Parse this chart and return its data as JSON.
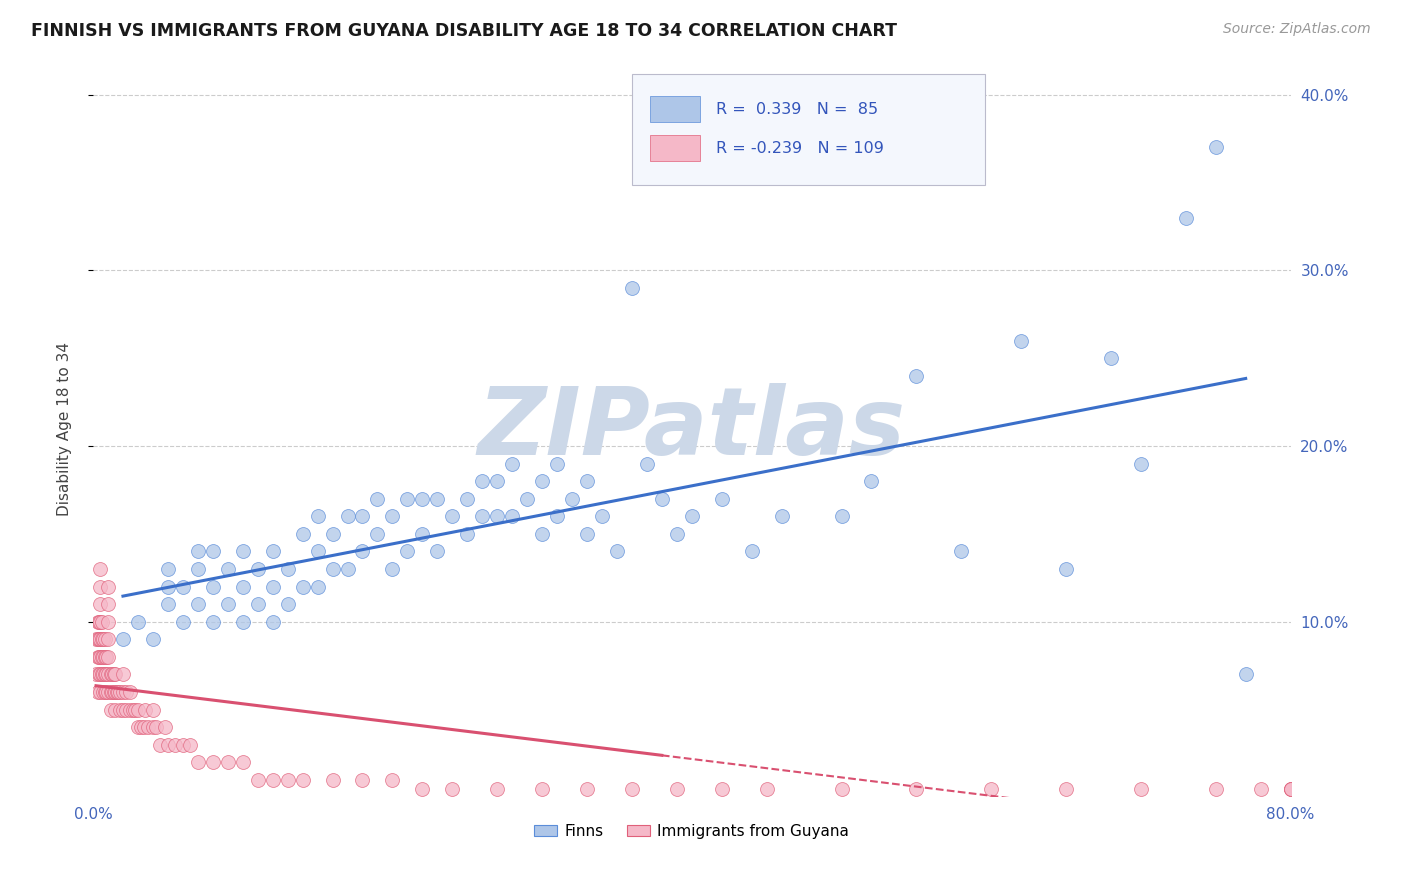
{
  "title": "FINNISH VS IMMIGRANTS FROM GUYANA DISABILITY AGE 18 TO 34 CORRELATION CHART",
  "source_text": "Source: ZipAtlas.com",
  "ylabel": "Disability Age 18 to 34",
  "xlim": [
    0.0,
    0.8
  ],
  "ylim": [
    0.0,
    0.42
  ],
  "xtick_labels_show": [
    "0.0%",
    "80.0%"
  ],
  "ytick_labels_right": [
    "10.0%",
    "20.0%",
    "30.0%",
    "40.0%"
  ],
  "yticks_right": [
    0.1,
    0.2,
    0.3,
    0.4
  ],
  "finns_R": 0.339,
  "finns_N": 85,
  "guyana_R": -0.239,
  "guyana_N": 109,
  "finn_color": "#aec6e8",
  "guyana_color": "#f5b8c8",
  "finn_edge_color": "#5b8dd9",
  "guyana_edge_color": "#e0607a",
  "finn_line_color": "#3b6fc9",
  "guyana_line_color": "#d95070",
  "background_color": "#ffffff",
  "grid_color": "#cccccc",
  "watermark": "ZIPatlas",
  "watermark_color": "#ccd8e8",
  "title_color": "#1a1a1a",
  "axis_label_color": "#444444",
  "tick_color": "#4466bb",
  "finn_x": [
    0.02,
    0.03,
    0.04,
    0.05,
    0.05,
    0.05,
    0.06,
    0.06,
    0.07,
    0.07,
    0.07,
    0.08,
    0.08,
    0.08,
    0.09,
    0.09,
    0.1,
    0.1,
    0.1,
    0.11,
    0.11,
    0.12,
    0.12,
    0.12,
    0.13,
    0.13,
    0.14,
    0.14,
    0.15,
    0.15,
    0.15,
    0.16,
    0.16,
    0.17,
    0.17,
    0.18,
    0.18,
    0.19,
    0.19,
    0.2,
    0.2,
    0.21,
    0.21,
    0.22,
    0.22,
    0.23,
    0.23,
    0.24,
    0.25,
    0.25,
    0.26,
    0.26,
    0.27,
    0.27,
    0.28,
    0.28,
    0.29,
    0.3,
    0.3,
    0.31,
    0.31,
    0.32,
    0.33,
    0.33,
    0.34,
    0.35,
    0.36,
    0.37,
    0.38,
    0.39,
    0.4,
    0.42,
    0.44,
    0.46,
    0.5,
    0.52,
    0.55,
    0.58,
    0.62,
    0.65,
    0.68,
    0.7,
    0.73,
    0.75,
    0.77
  ],
  "finn_y": [
    0.09,
    0.1,
    0.09,
    0.11,
    0.12,
    0.13,
    0.1,
    0.12,
    0.11,
    0.13,
    0.14,
    0.1,
    0.12,
    0.14,
    0.11,
    0.13,
    0.1,
    0.12,
    0.14,
    0.11,
    0.13,
    0.1,
    0.12,
    0.14,
    0.11,
    0.13,
    0.12,
    0.15,
    0.12,
    0.14,
    0.16,
    0.13,
    0.15,
    0.13,
    0.16,
    0.14,
    0.16,
    0.15,
    0.17,
    0.13,
    0.16,
    0.14,
    0.17,
    0.15,
    0.17,
    0.14,
    0.17,
    0.16,
    0.15,
    0.17,
    0.16,
    0.18,
    0.16,
    0.18,
    0.16,
    0.19,
    0.17,
    0.15,
    0.18,
    0.16,
    0.19,
    0.17,
    0.15,
    0.18,
    0.16,
    0.14,
    0.29,
    0.19,
    0.17,
    0.15,
    0.16,
    0.17,
    0.14,
    0.16,
    0.16,
    0.18,
    0.24,
    0.14,
    0.26,
    0.13,
    0.25,
    0.19,
    0.33,
    0.37,
    0.07
  ],
  "guyana_x": [
    0.002,
    0.002,
    0.003,
    0.003,
    0.003,
    0.003,
    0.004,
    0.004,
    0.004,
    0.004,
    0.005,
    0.005,
    0.005,
    0.005,
    0.005,
    0.005,
    0.005,
    0.005,
    0.006,
    0.006,
    0.006,
    0.006,
    0.007,
    0.007,
    0.007,
    0.007,
    0.008,
    0.008,
    0.008,
    0.008,
    0.009,
    0.009,
    0.009,
    0.01,
    0.01,
    0.01,
    0.01,
    0.01,
    0.01,
    0.01,
    0.012,
    0.012,
    0.012,
    0.013,
    0.013,
    0.014,
    0.014,
    0.015,
    0.015,
    0.015,
    0.016,
    0.017,
    0.018,
    0.018,
    0.02,
    0.02,
    0.02,
    0.022,
    0.022,
    0.025,
    0.025,
    0.027,
    0.028,
    0.03,
    0.03,
    0.032,
    0.034,
    0.035,
    0.037,
    0.04,
    0.04,
    0.042,
    0.045,
    0.048,
    0.05,
    0.055,
    0.06,
    0.065,
    0.07,
    0.08,
    0.09,
    0.1,
    0.11,
    0.12,
    0.13,
    0.14,
    0.16,
    0.18,
    0.2,
    0.22,
    0.24,
    0.27,
    0.3,
    0.33,
    0.36,
    0.39,
    0.42,
    0.45,
    0.5,
    0.55,
    0.6,
    0.65,
    0.7,
    0.75,
    0.78,
    0.8,
    0.8,
    0.8,
    0.8
  ],
  "guyana_y": [
    0.07,
    0.09,
    0.06,
    0.08,
    0.09,
    0.1,
    0.07,
    0.08,
    0.09,
    0.1,
    0.06,
    0.07,
    0.08,
    0.09,
    0.1,
    0.11,
    0.12,
    0.13,
    0.07,
    0.08,
    0.09,
    0.1,
    0.06,
    0.07,
    0.08,
    0.09,
    0.06,
    0.07,
    0.08,
    0.09,
    0.06,
    0.07,
    0.08,
    0.06,
    0.07,
    0.08,
    0.09,
    0.1,
    0.11,
    0.12,
    0.05,
    0.06,
    0.07,
    0.06,
    0.07,
    0.06,
    0.07,
    0.05,
    0.06,
    0.07,
    0.06,
    0.06,
    0.05,
    0.06,
    0.05,
    0.06,
    0.07,
    0.05,
    0.06,
    0.05,
    0.06,
    0.05,
    0.05,
    0.04,
    0.05,
    0.04,
    0.04,
    0.05,
    0.04,
    0.04,
    0.05,
    0.04,
    0.03,
    0.04,
    0.03,
    0.03,
    0.03,
    0.03,
    0.02,
    0.02,
    0.02,
    0.02,
    0.01,
    0.01,
    0.01,
    0.01,
    0.01,
    0.01,
    0.01,
    0.005,
    0.005,
    0.005,
    0.005,
    0.005,
    0.005,
    0.005,
    0.005,
    0.005,
    0.005,
    0.005,
    0.005,
    0.005,
    0.005,
    0.005,
    0.005,
    0.005,
    0.005,
    0.005,
    0.005
  ]
}
